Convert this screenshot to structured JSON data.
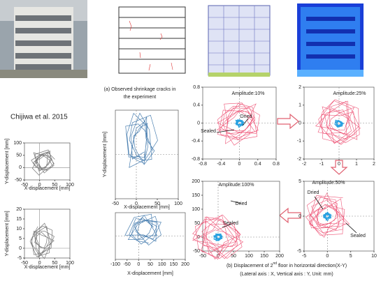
{
  "caption_a": [
    "(a) Observed shrinkage cracks in",
    "the experiment"
  ],
  "author": "Chijiwa et al. 2015",
  "plots": [
    {
      "xticks": [
        -50,
        0,
        50,
        100
      ],
      "yticks": [
        100,
        50,
        0,
        -50
      ],
      "xlabel": "X-displacement [mm]",
      "ylabel": "Y-displacement [mm]"
    },
    {
      "xticks": [
        -50,
        0,
        50,
        100
      ],
      "yticks": [
        20,
        15,
        10,
        5,
        0,
        -5
      ],
      "xlabel": "X-displacement [mm]",
      "ylabel": "Y-displacement [mm]"
    },
    {
      "xticks": [
        -50,
        0,
        50,
        100
      ],
      "xlabel": "X-displacement [mm]",
      "ylabel": "Y-displacement [mm]"
    },
    {
      "xticks": [
        -100,
        -50,
        0,
        50,
        100,
        150,
        200
      ],
      "xlabel": "X-displacement [mm]"
    },
    {
      "xticks": [
        -0.8,
        -0.4,
        0,
        0.4,
        0.8
      ],
      "yticks": [
        0.8,
        0.4,
        0,
        -0.4,
        -0.8
      ],
      "annotations": [
        "Amplitude:10%",
        "Dried",
        "Sealed"
      ]
    },
    {
      "xticks": [
        -2,
        -1,
        0,
        1,
        2
      ],
      "yticks": [
        2,
        1,
        0,
        -1,
        -2
      ],
      "annotations": [
        "Amplitude:25%"
      ]
    },
    {
      "xticks": [
        -50,
        0,
        50,
        100,
        150,
        200
      ],
      "yticks": [
        200,
        150,
        100,
        50,
        0,
        -50
      ],
      "annotations": [
        "Amplitude:100%",
        "Dried",
        "Sealed"
      ]
    },
    {
      "xticks": [
        -5,
        0,
        5,
        10
      ],
      "yticks": [
        5,
        0,
        -5
      ],
      "annotations": [
        "Amplitude:50%",
        "Dried",
        "Sealed"
      ]
    }
  ],
  "caption_b": {
    "before": "(b) Displacement of 2",
    "sup": "nd",
    "after": " floor in horizontal direction(X-Y)",
    "line2": "(Lateral axis : X, Vertical axis : Y, Unit: mm)"
  }
}
